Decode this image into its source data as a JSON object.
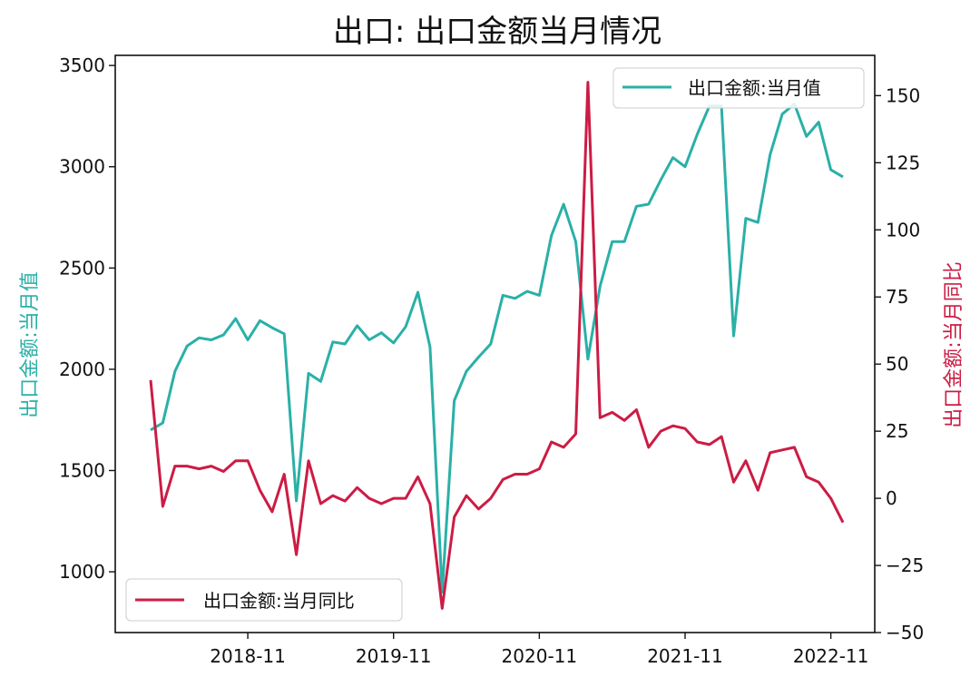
{
  "chart_data": {
    "type": "line",
    "title": "出口: 出口金额当月情况",
    "legend_left": "top-right",
    "legend_right": "bottom-left",
    "left_axis": {
      "label": "出口金额:当月值",
      "color": "#2ab0a7",
      "ylim": [
        700,
        3550
      ],
      "ticks": [
        1000,
        1500,
        2000,
        2500,
        3000,
        3500
      ]
    },
    "right_axis": {
      "label": "出口金额:当月同比",
      "color": "#cc1c44",
      "ylim": [
        -50,
        165
      ],
      "ticks": [
        -50,
        -25,
        0,
        25,
        50,
        75,
        100,
        125,
        150
      ],
      "tick_labels": [
        "−50",
        "−25",
        "0",
        "25",
        "50",
        "75",
        "100",
        "125",
        "150"
      ]
    },
    "x_ticks": [
      "2018-11",
      "2019-11",
      "2020-11",
      "2021-11",
      "2022-11"
    ],
    "x": [
      "2018-03",
      "2018-04",
      "2018-05",
      "2018-06",
      "2018-07",
      "2018-08",
      "2018-09",
      "2018-10",
      "2018-11",
      "2018-12",
      "2019-01",
      "2019-02",
      "2019-03",
      "2019-04",
      "2019-05",
      "2019-06",
      "2019-07",
      "2019-08",
      "2019-09",
      "2019-10",
      "2019-11",
      "2019-12",
      "2020-01",
      "2020-02",
      "2020-03",
      "2020-04",
      "2020-05",
      "2020-06",
      "2020-07",
      "2020-08",
      "2020-09",
      "2020-10",
      "2020-11",
      "2020-12",
      "2021-01",
      "2021-02",
      "2021-03",
      "2021-04",
      "2021-05",
      "2021-06",
      "2021-07",
      "2021-08",
      "2021-09",
      "2021-10",
      "2021-11",
      "2021-12",
      "2022-01",
      "2022-02",
      "2022-03",
      "2022-04",
      "2022-05",
      "2022-06",
      "2022-07",
      "2022-08",
      "2022-09",
      "2022-10",
      "2022-11",
      "2022-12"
    ],
    "series": [
      {
        "name": "出口金额:当月值",
        "axis": "left",
        "color": "#2ab0a7",
        "values": [
          1700,
          1735,
          1990,
          2115,
          2155,
          2145,
          2170,
          2250,
          2145,
          2240,
          2205,
          2175,
          1350,
          1980,
          1940,
          2135,
          2125,
          2215,
          2145,
          2180,
          2130,
          2210,
          2380,
          2110,
          900,
          1845,
          1990,
          2060,
          2125,
          2365,
          2350,
          2385,
          2365,
          2660,
          2815,
          2630,
          2050,
          2410,
          2630,
          2630,
          2805,
          2815,
          2935,
          3045,
          3000,
          3160,
          3300,
          3300,
          2165,
          2745,
          2725,
          3060,
          3260,
          3310,
          3150,
          3220,
          2985,
          2950
        ]
      },
      {
        "name": "出口金额:当月同比",
        "axis": "right",
        "color": "#cc1c44",
        "values": [
          44,
          -3,
          12,
          12,
          11,
          12,
          10,
          14,
          14,
          3,
          -5,
          9,
          -21,
          14,
          -2,
          1,
          -1,
          4,
          0,
          -2,
          0,
          0,
          8,
          -2,
          -41,
          -7,
          1,
          -4,
          0,
          7,
          9,
          9,
          11,
          21,
          19,
          24,
          155,
          30,
          32,
          29,
          33,
          19,
          25,
          27,
          26,
          21,
          20,
          23,
          6,
          14,
          3,
          17,
          18,
          19,
          8,
          6,
          0,
          -9
        ]
      }
    ]
  }
}
